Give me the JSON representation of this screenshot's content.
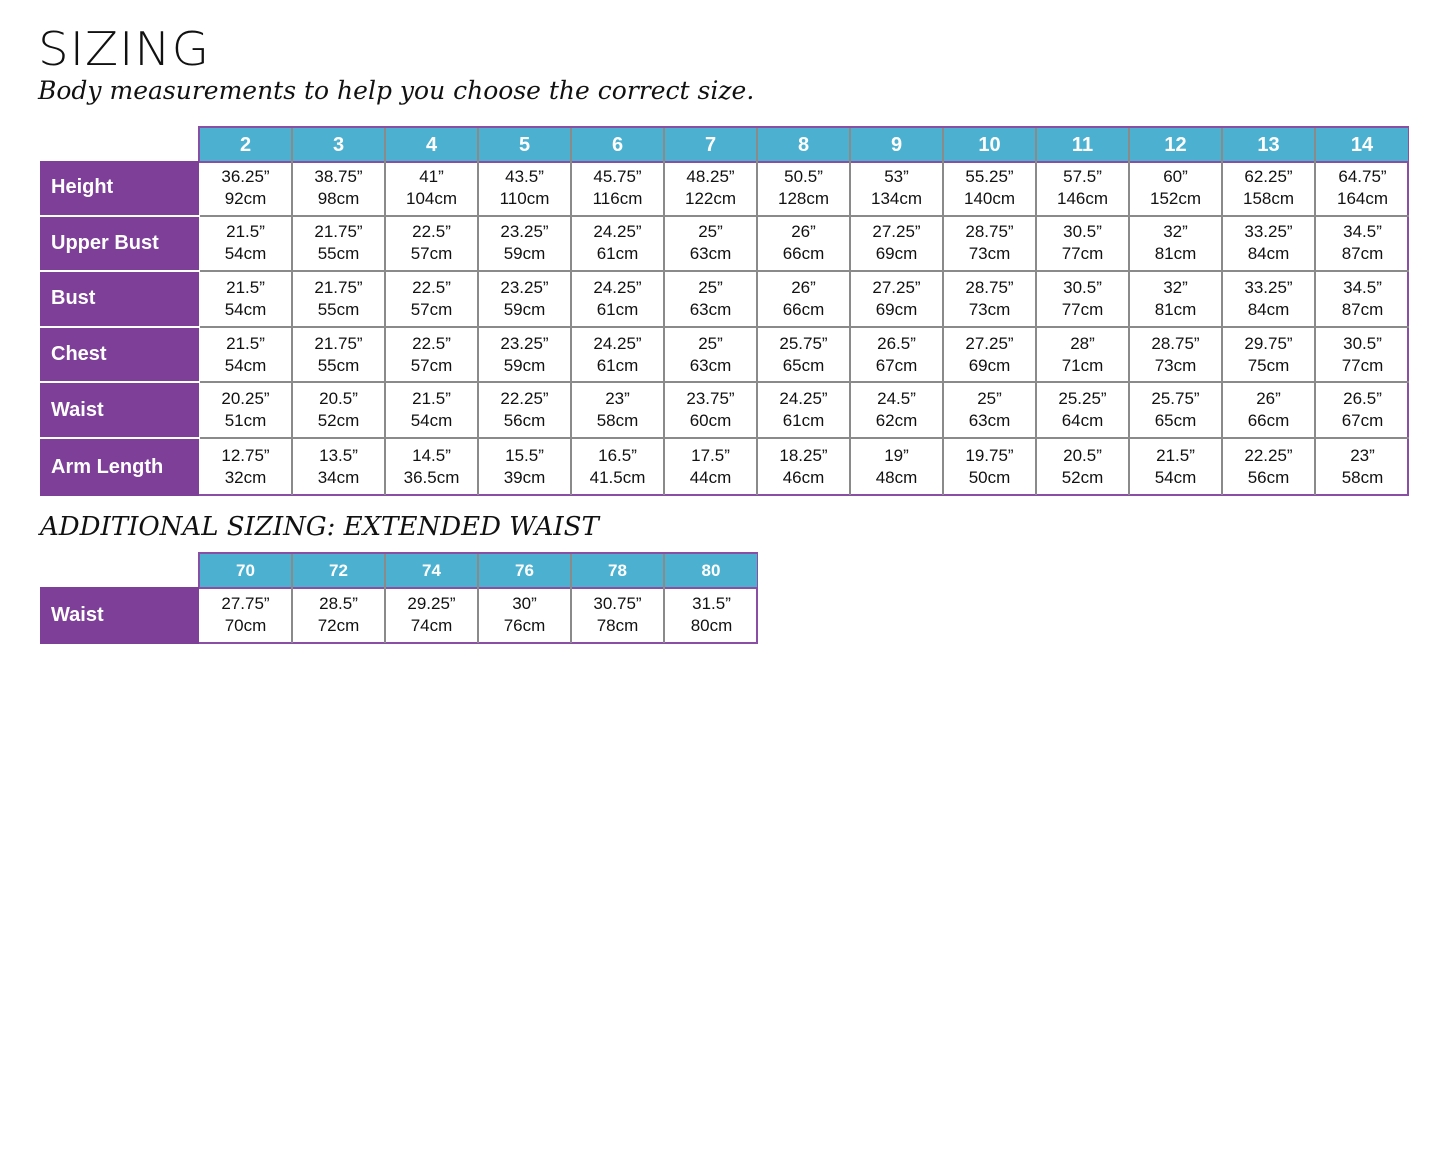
{
  "title": "SIZING",
  "subtitle": "Body measurements to help you choose the correct size.",
  "colors": {
    "header_bg": "#4cb1d1",
    "row_label_bg": "#7e3f98",
    "border": "#8a8a8a"
  },
  "main_table": {
    "sizes": [
      "2",
      "3",
      "4",
      "5",
      "6",
      "7",
      "8",
      "9",
      "10",
      "11",
      "12",
      "13",
      "14"
    ],
    "rows": [
      {
        "label": "Height",
        "in": [
          "36.25”",
          "38.75”",
          "41”",
          "43.5”",
          "45.75”",
          "48.25”",
          "50.5”",
          "53”",
          "55.25”",
          "57.5”",
          "60”",
          "62.25”",
          "64.75”"
        ],
        "cm": [
          "92cm",
          "98cm",
          "104cm",
          "110cm",
          "116cm",
          "122cm",
          "128cm",
          "134cm",
          "140cm",
          "146cm",
          "152cm",
          "158cm",
          "164cm"
        ]
      },
      {
        "label": "Upper Bust",
        "in": [
          "21.5”",
          "21.75”",
          "22.5”",
          "23.25”",
          "24.25”",
          "25”",
          "26”",
          "27.25”",
          "28.75”",
          "30.5”",
          "32”",
          "33.25”",
          "34.5”"
        ],
        "cm": [
          "54cm",
          "55cm",
          "57cm",
          "59cm",
          "61cm",
          "63cm",
          "66cm",
          "69cm",
          "73cm",
          "77cm",
          "81cm",
          "84cm",
          "87cm"
        ]
      },
      {
        "label": "Bust",
        "in": [
          "21.5”",
          "21.75”",
          "22.5”",
          "23.25”",
          "24.25”",
          "25”",
          "26”",
          "27.25”",
          "28.75”",
          "30.5”",
          "32”",
          "33.25”",
          "34.5”"
        ],
        "cm": [
          "54cm",
          "55cm",
          "57cm",
          "59cm",
          "61cm",
          "63cm",
          "66cm",
          "69cm",
          "73cm",
          "77cm",
          "81cm",
          "84cm",
          "87cm"
        ]
      },
      {
        "label": "Chest",
        "in": [
          "21.5”",
          "21.75”",
          "22.5”",
          "23.25”",
          "24.25”",
          "25”",
          "25.75”",
          "26.5”",
          "27.25”",
          "28”",
          "28.75”",
          "29.75”",
          "30.5”"
        ],
        "cm": [
          "54cm",
          "55cm",
          "57cm",
          "59cm",
          "61cm",
          "63cm",
          "65cm",
          "67cm",
          "69cm",
          "71cm",
          "73cm",
          "75cm",
          "77cm"
        ]
      },
      {
        "label": "Waist",
        "in": [
          "20.25”",
          "20.5”",
          "21.5”",
          "22.25”",
          "23”",
          "23.75”",
          "24.25”",
          "24.5”",
          "25”",
          "25.25”",
          "25.75”",
          "26”",
          "26.5”"
        ],
        "cm": [
          "51cm",
          "52cm",
          "54cm",
          "56cm",
          "58cm",
          "60cm",
          "61cm",
          "62cm",
          "63cm",
          "64cm",
          "65cm",
          "66cm",
          "67cm"
        ]
      },
      {
        "label": "Arm Length",
        "in": [
          "12.75”",
          "13.5”",
          "14.5”",
          "15.5”",
          "16.5”",
          "17.5”",
          "18.25”",
          "19”",
          "19.75”",
          "20.5”",
          "21.5”",
          "22.25”",
          "23”"
        ],
        "cm": [
          "32cm",
          "34cm",
          "36.5cm",
          "39cm",
          "41.5cm",
          "44cm",
          "46cm",
          "48cm",
          "50cm",
          "52cm",
          "54cm",
          "56cm",
          "58cm"
        ]
      }
    ]
  },
  "extended_title": "ADDITIONAL SIZING: EXTENDED WAIST",
  "extended_table": {
    "sizes": [
      "70",
      "72",
      "74",
      "76",
      "78",
      "80"
    ],
    "rows": [
      {
        "label": "Waist",
        "in": [
          "27.75”",
          "28.5”",
          "29.25”",
          "30”",
          "30.75”",
          "31.5”"
        ],
        "cm": [
          "70cm",
          "72cm",
          "74cm",
          "76cm",
          "78cm",
          "80cm"
        ]
      }
    ]
  }
}
